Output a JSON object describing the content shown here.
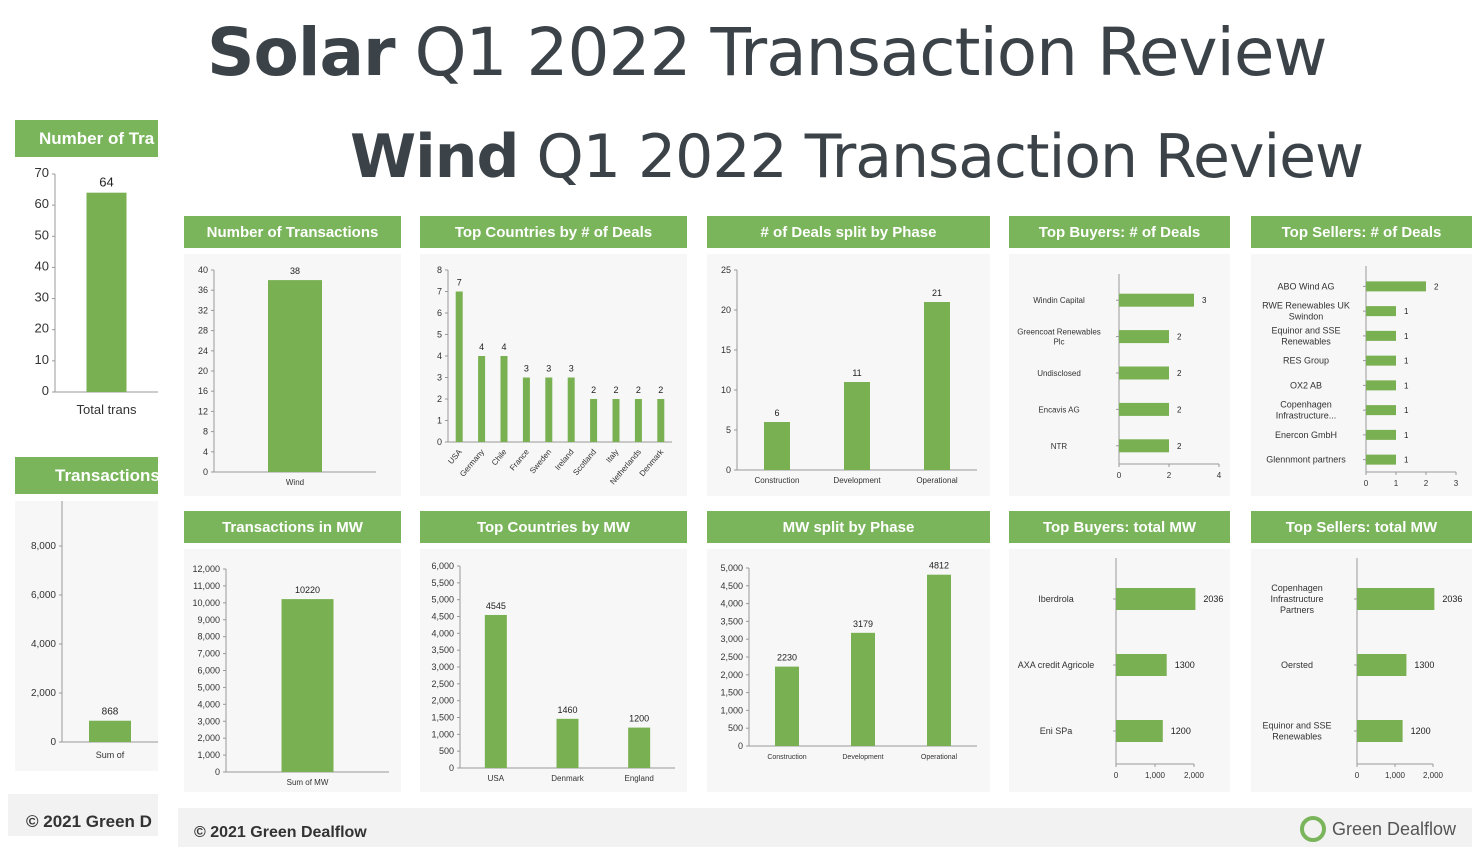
{
  "titles": {
    "solar_bold": "Solar",
    "solar_rest": " Q1 2022 Transaction Review",
    "wind_bold": "Wind",
    "wind_rest": " Q1 2022 Transaction Review"
  },
  "background_solar": {
    "number_header": "Number of Tra",
    "transactions_header": "Transactions",
    "count_value": "64",
    "count_label": "Total trans",
    "mw_value": "868",
    "mw_label": "Sum of",
    "footer": "© 2021 Green D"
  },
  "footer": {
    "copyright": "© 2021 Green Dealflow",
    "logo_text": "Green Dealflow"
  },
  "colors": {
    "accent": "#7ab55c",
    "bar": "#79b052",
    "panel_bg": "#f6f7f6"
  },
  "headers": {
    "transactions": "Number of Transactions",
    "top_countries_deals": "Top Countries by # of Deals",
    "deals_phase": "# of Deals split by Phase",
    "top_buyers_deals": "Top Buyers: # of Deals",
    "top_sellers_deals": "Top Sellers: # of Deals",
    "transactions_mw": "Transactions in MW",
    "top_countries_mw": "Top Countries by MW",
    "mw_phase": "MW split by Phase",
    "top_buyers_mw": "Top Buyers: total MW",
    "top_sellers_mw": "Top Sellers: total MW"
  },
  "chart_data": [
    {
      "id": "solar-count",
      "type": "bar",
      "categories": [
        "Total trans"
      ],
      "values": [
        64
      ],
      "ylim": [
        0,
        70
      ],
      "yticks": [
        0,
        10,
        20,
        30,
        40,
        50,
        60,
        70
      ],
      "ytick_labels": [
        "0",
        "10",
        "20",
        "30",
        "40",
        "50",
        "60",
        "70"
      ]
    },
    {
      "id": "solar-mw",
      "type": "bar",
      "categories": [
        "Sum of"
      ],
      "values": [
        868
      ],
      "ylim": [
        0,
        10000
      ],
      "yticks": [
        0,
        2000,
        4000,
        6000,
        8000
      ],
      "ytick_labels": [
        "0",
        "2,000",
        "4,000",
        "6,000",
        "8,000"
      ]
    },
    {
      "id": "wind-count",
      "type": "bar",
      "categories": [
        "Wind"
      ],
      "values": [
        38
      ],
      "ylim": [
        0,
        40
      ],
      "yticks": [
        0,
        4,
        8,
        12,
        16,
        20,
        24,
        28,
        32,
        36,
        40
      ],
      "ytick_labels": [
        "0",
        "4",
        "8",
        "12",
        "16",
        "20",
        "24",
        "28",
        "32",
        "36",
        "40"
      ]
    },
    {
      "id": "countries-deals",
      "type": "bar",
      "categories": [
        "USA",
        "Germany",
        "Chile",
        "France",
        "Sweden",
        "Ireland",
        "Scotland",
        "Italy",
        "Netherlands",
        "Denmark"
      ],
      "values": [
        7,
        4,
        4,
        3,
        3,
        3,
        2,
        2,
        2,
        2
      ],
      "ylim": [
        0,
        8
      ],
      "yticks": [
        0,
        1,
        2,
        3,
        4,
        5,
        6,
        7,
        8
      ],
      "ytick_labels": [
        "0",
        "1",
        "2",
        "3",
        "4",
        "5",
        "6",
        "7",
        "8"
      ]
    },
    {
      "id": "deals-phase",
      "type": "bar",
      "categories": [
        "Construction",
        "Development",
        "Operational"
      ],
      "values": [
        6,
        11,
        21
      ],
      "ylim": [
        0,
        25
      ],
      "yticks": [
        0,
        5,
        10,
        15,
        20,
        25
      ],
      "ytick_labels": [
        "0",
        "5",
        "10",
        "15",
        "20",
        "25"
      ]
    },
    {
      "id": "buyers-deals",
      "type": "bar",
      "orientation": "horizontal",
      "categories": [
        [
          "Windin Capital"
        ],
        [
          "Greencoat Renewables",
          "Plc"
        ],
        [
          "Undisclosed"
        ],
        [
          "Encavis AG"
        ],
        [
          "NTR"
        ]
      ],
      "values": [
        3,
        2,
        2,
        2,
        2
      ],
      "xlim": [
        0,
        4
      ],
      "xticks": [
        0,
        2,
        4
      ],
      "xtick_labels": [
        "0",
        "2",
        "4"
      ]
    },
    {
      "id": "sellers-deals",
      "type": "bar",
      "orientation": "horizontal",
      "categories": [
        [
          "ABO Wind AG"
        ],
        [
          "RWE Renewables UK",
          "Swindon"
        ],
        [
          "Equinor and SSE",
          "Renewables"
        ],
        [
          "RES Group"
        ],
        [
          "OX2 AB"
        ],
        [
          "Copenhagen",
          "Infrastructure..."
        ],
        [
          "Enercon GmbH"
        ],
        [
          "Glennmont partners"
        ]
      ],
      "values": [
        2,
        1,
        1,
        1,
        1,
        1,
        1,
        1
      ],
      "xlim": [
        0,
        3
      ],
      "xticks": [
        0,
        1,
        2,
        3
      ],
      "xtick_labels": [
        "0",
        "1",
        "2",
        "3"
      ]
    },
    {
      "id": "wind-mw",
      "type": "bar",
      "categories": [
        "Sum of MW"
      ],
      "values": [
        10220
      ],
      "ylim": [
        0,
        12000
      ],
      "yticks": [
        0,
        1000,
        2000,
        3000,
        4000,
        5000,
        6000,
        7000,
        8000,
        9000,
        10000,
        11000,
        12000
      ],
      "ytick_labels": [
        "0",
        "1,000",
        "2,000",
        "3,000",
        "4,000",
        "5,000",
        "6,000",
        "7,000",
        "8,000",
        "9,000",
        "10,000",
        "11,000",
        "12,000"
      ]
    },
    {
      "id": "countries-mw",
      "type": "bar",
      "categories": [
        "USA",
        "Denmark",
        "England"
      ],
      "values": [
        4545,
        1460,
        1200
      ],
      "ylim": [
        0,
        6000
      ],
      "yticks": [
        0,
        500,
        1000,
        1500,
        2000,
        2500,
        3000,
        3500,
        4000,
        4500,
        5000,
        5500,
        6000
      ],
      "ytick_labels": [
        "0",
        "500",
        "1,000",
        "1,500",
        "2,000",
        "2,500",
        "3,000",
        "3,500",
        "4,000",
        "4,500",
        "5,000",
        "5,500",
        "6,000"
      ]
    },
    {
      "id": "mw-phase",
      "type": "bar",
      "categories": [
        "Construction",
        "Development",
        "Operational"
      ],
      "values": [
        2230,
        3179,
        4812
      ],
      "ylim": [
        0,
        5000
      ],
      "yticks": [
        0,
        500,
        1000,
        1500,
        2000,
        2500,
        3000,
        3500,
        4000,
        4500,
        5000
      ],
      "ytick_labels": [
        "0",
        "500",
        "1,000",
        "1,500",
        "2,000",
        "2,500",
        "3,000",
        "3,500",
        "4,000",
        "4,500",
        "5,000"
      ]
    },
    {
      "id": "buyers-mw",
      "type": "bar",
      "orientation": "horizontal",
      "categories": [
        [
          "Iberdrola"
        ],
        [
          "AXA credit Agricole"
        ],
        [
          "Eni SPa"
        ]
      ],
      "values": [
        2036,
        1300,
        1200
      ],
      "xlim": [
        0,
        2000
      ],
      "xticks": [
        0,
        1000,
        2000
      ],
      "xtick_labels": [
        "0",
        "1,000",
        "2,000"
      ]
    },
    {
      "id": "sellers-mw",
      "type": "bar",
      "orientation": "horizontal",
      "categories": [
        [
          "Copenhagen",
          "Infrastructure",
          "Partners"
        ],
        [
          "Oersted"
        ],
        [
          "Equinor and SSE",
          "Renewables"
        ]
      ],
      "values": [
        2036,
        1300,
        1200
      ],
      "xlim": [
        0,
        2000
      ],
      "xticks": [
        0,
        1000,
        2000
      ],
      "xtick_labels": [
        "0",
        "1,000",
        "2,000"
      ]
    }
  ]
}
